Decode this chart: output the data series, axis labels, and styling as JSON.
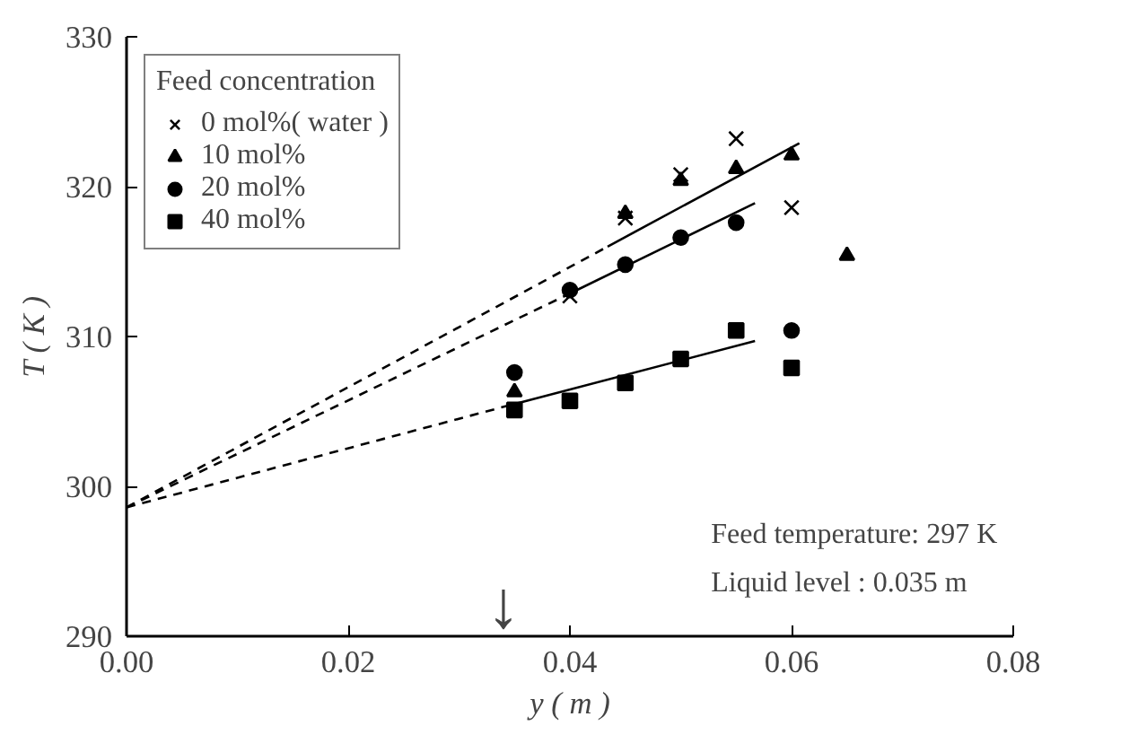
{
  "chart_data": {
    "type": "scatter",
    "xlabel": "y ( m )",
    "ylabel": "T ( K )",
    "legend_title": "Feed concentration",
    "legend": "top left",
    "grid": false,
    "xlim": [
      0,
      0.08
    ],
    "xticks": [
      {
        "value": 0,
        "label": "0.00"
      },
      {
        "value": 0.02,
        "label": "0.02"
      },
      {
        "value": 0.04,
        "label": "0.04"
      },
      {
        "value": 0.06,
        "label": "0.06"
      },
      {
        "value": 0.08,
        "label": "0.08"
      }
    ],
    "ylim": [
      290,
      330
    ],
    "yticks": [
      290,
      300,
      310,
      320,
      330
    ],
    "series": [
      {
        "name": "0 mol%( water )",
        "color": "#000000",
        "marker": "cross",
        "x": [
          0.04,
          0.045,
          0.05,
          0.055,
          0.06
        ],
        "values": [
          312.7,
          317.9,
          320.8,
          323.2,
          318.6
        ]
      },
      {
        "name": "10 mol%",
        "color": "#000000",
        "marker": "triangle",
        "x": [
          0.035,
          0.045,
          0.05,
          0.055,
          0.06,
          0.065
        ],
        "values": [
          306.3,
          318.2,
          320.4,
          321.2,
          322.1,
          315.4
        ]
      },
      {
        "name": "20 mol%",
        "color": "#000000",
        "marker": "circle",
        "x": [
          0.035,
          0.04,
          0.045,
          0.05,
          0.055,
          0.06
        ],
        "values": [
          307.6,
          313.1,
          314.8,
          316.6,
          317.6,
          310.4
        ]
      },
      {
        "name": "40 mol%",
        "color": "#000000",
        "marker": "square",
        "x": [
          0.035,
          0.04,
          0.045,
          0.05,
          0.055,
          0.06
        ],
        "values": [
          305.1,
          305.7,
          306.9,
          308.5,
          310.4,
          307.9
        ]
      },
      {
        "type": "line",
        "color": "#000000",
        "line_style": "dashed",
        "x": [
          0,
          0.0434
        ],
        "values": [
          298.6,
          316.0
        ]
      },
      {
        "type": "line",
        "color": "#000000",
        "line_style": "solid",
        "x": [
          0.0434,
          0.0607
        ],
        "values": [
          316.0,
          322.9
        ]
      },
      {
        "type": "line",
        "color": "#000000",
        "line_style": "dashed",
        "x": [
          0,
          0.0398
        ],
        "values": [
          298.6,
          312.8
        ]
      },
      {
        "type": "line",
        "color": "#000000",
        "line_style": "solid",
        "x": [
          0.0398,
          0.0567
        ],
        "values": [
          312.8,
          318.9
        ]
      },
      {
        "type": "line",
        "color": "#000000",
        "line_style": "dashed",
        "x": [
          0,
          0.035
        ],
        "values": [
          298.6,
          305.5
        ]
      },
      {
        "type": "line",
        "color": "#000000",
        "line_style": "solid",
        "x": [
          0.035,
          0.0567
        ],
        "values": [
          305.5,
          309.7
        ]
      }
    ],
    "annotations": [
      "Feed temperature: 297 K",
      "Liquid level       : 0.035 m",
      "↓"
    ]
  }
}
